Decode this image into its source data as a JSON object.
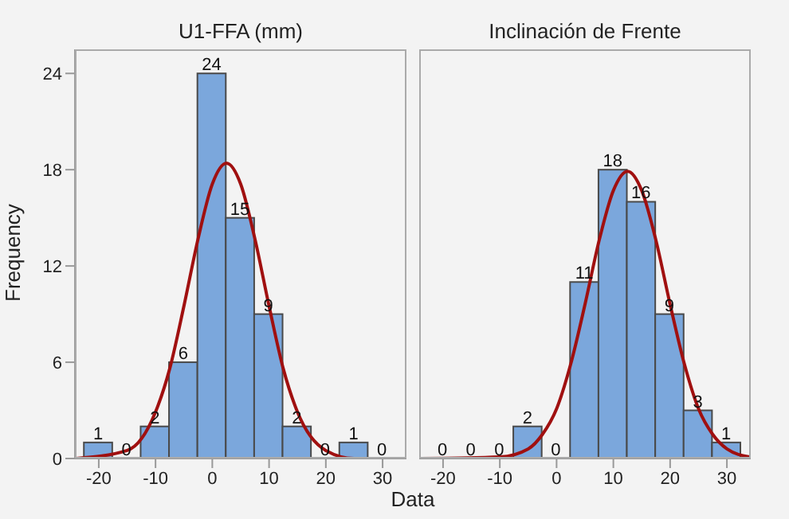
{
  "chart_data": [
    {
      "type": "histogram",
      "title": "U1-FFA (mm)",
      "ylabel": "Frequency",
      "xlabel": "Data",
      "bins": [
        -22.5,
        -17.5,
        -12.5,
        -7.5,
        -2.5,
        2.5,
        7.5,
        12.5,
        17.5,
        22.5,
        27.5,
        32.5
      ],
      "xlim": [
        -24.2,
        34.2
      ],
      "xticks": [
        -20,
        -10,
        0,
        10,
        20,
        30
      ],
      "ylim": [
        0,
        25.5
      ],
      "yticks": [
        0,
        6,
        12,
        18,
        24
      ],
      "grid": false,
      "legend": false,
      "marker": "none",
      "line_style": "solid",
      "series": [
        {
          "type": "histogram",
          "color": "#7ba7dc",
          "values": [
            1,
            0,
            2,
            6,
            24,
            15,
            9,
            2,
            0,
            1,
            0
          ],
          "value_labels": [
            "1",
            "0",
            "2",
            "6",
            "24",
            "15",
            "9",
            "2",
            "0",
            "1",
            "0"
          ]
        },
        {
          "type": "line",
          "color": "#a01010",
          "x": [
            -24,
            -15,
            -10,
            -7.5,
            -5,
            -2.5,
            0,
            2.5,
            5,
            7.5,
            10,
            12.5,
            15,
            20,
            25,
            34
          ],
          "values": [
            0,
            0.5,
            2.9,
            5.6,
            9.5,
            13.7,
            17.1,
            18.4,
            17.1,
            13.7,
            9.5,
            5.6,
            2.9,
            0.5,
            0,
            0
          ]
        }
      ]
    },
    {
      "type": "histogram",
      "title": "Inclinación de Frente",
      "bins": [
        -22.5,
        -17.5,
        -12.5,
        -7.5,
        -2.5,
        2.5,
        7.5,
        12.5,
        17.5,
        22.5,
        27.5,
        32.5
      ],
      "xlim": [
        -24.2,
        34.2
      ],
      "xticks": [
        -20,
        -10,
        0,
        10,
        20,
        30
      ],
      "ylim": [
        0,
        25.5
      ],
      "yticks": [
        0,
        6,
        12,
        18,
        24
      ],
      "tick_labels": "x",
      "grid": false,
      "legend": false,
      "marker": "none",
      "line_style": "solid",
      "series": [
        {
          "type": "histogram",
          "color": "#7ba7dc",
          "values": [
            0,
            0,
            0,
            2,
            0,
            11,
            18,
            16,
            9,
            3,
            1
          ],
          "value_labels": [
            "0",
            "0",
            "0",
            "2",
            "0",
            "11",
            "18",
            "16",
            "9",
            "3",
            "1"
          ]
        },
        {
          "type": "line",
          "color": "#a01010",
          "x": [
            -24,
            -10,
            -5,
            -2.5,
            0,
            2.5,
            5,
            7.5,
            10,
            12.5,
            15,
            17.5,
            20,
            22.5,
            25,
            27.5,
            30,
            34
          ],
          "values": [
            0,
            0.1,
            0.6,
            1.5,
            3.1,
            5.9,
            9.6,
            13.6,
            16.7,
            17.9,
            16.7,
            13.6,
            9.6,
            5.9,
            3.1,
            1.5,
            0.6,
            0.1
          ]
        }
      ]
    }
  ]
}
